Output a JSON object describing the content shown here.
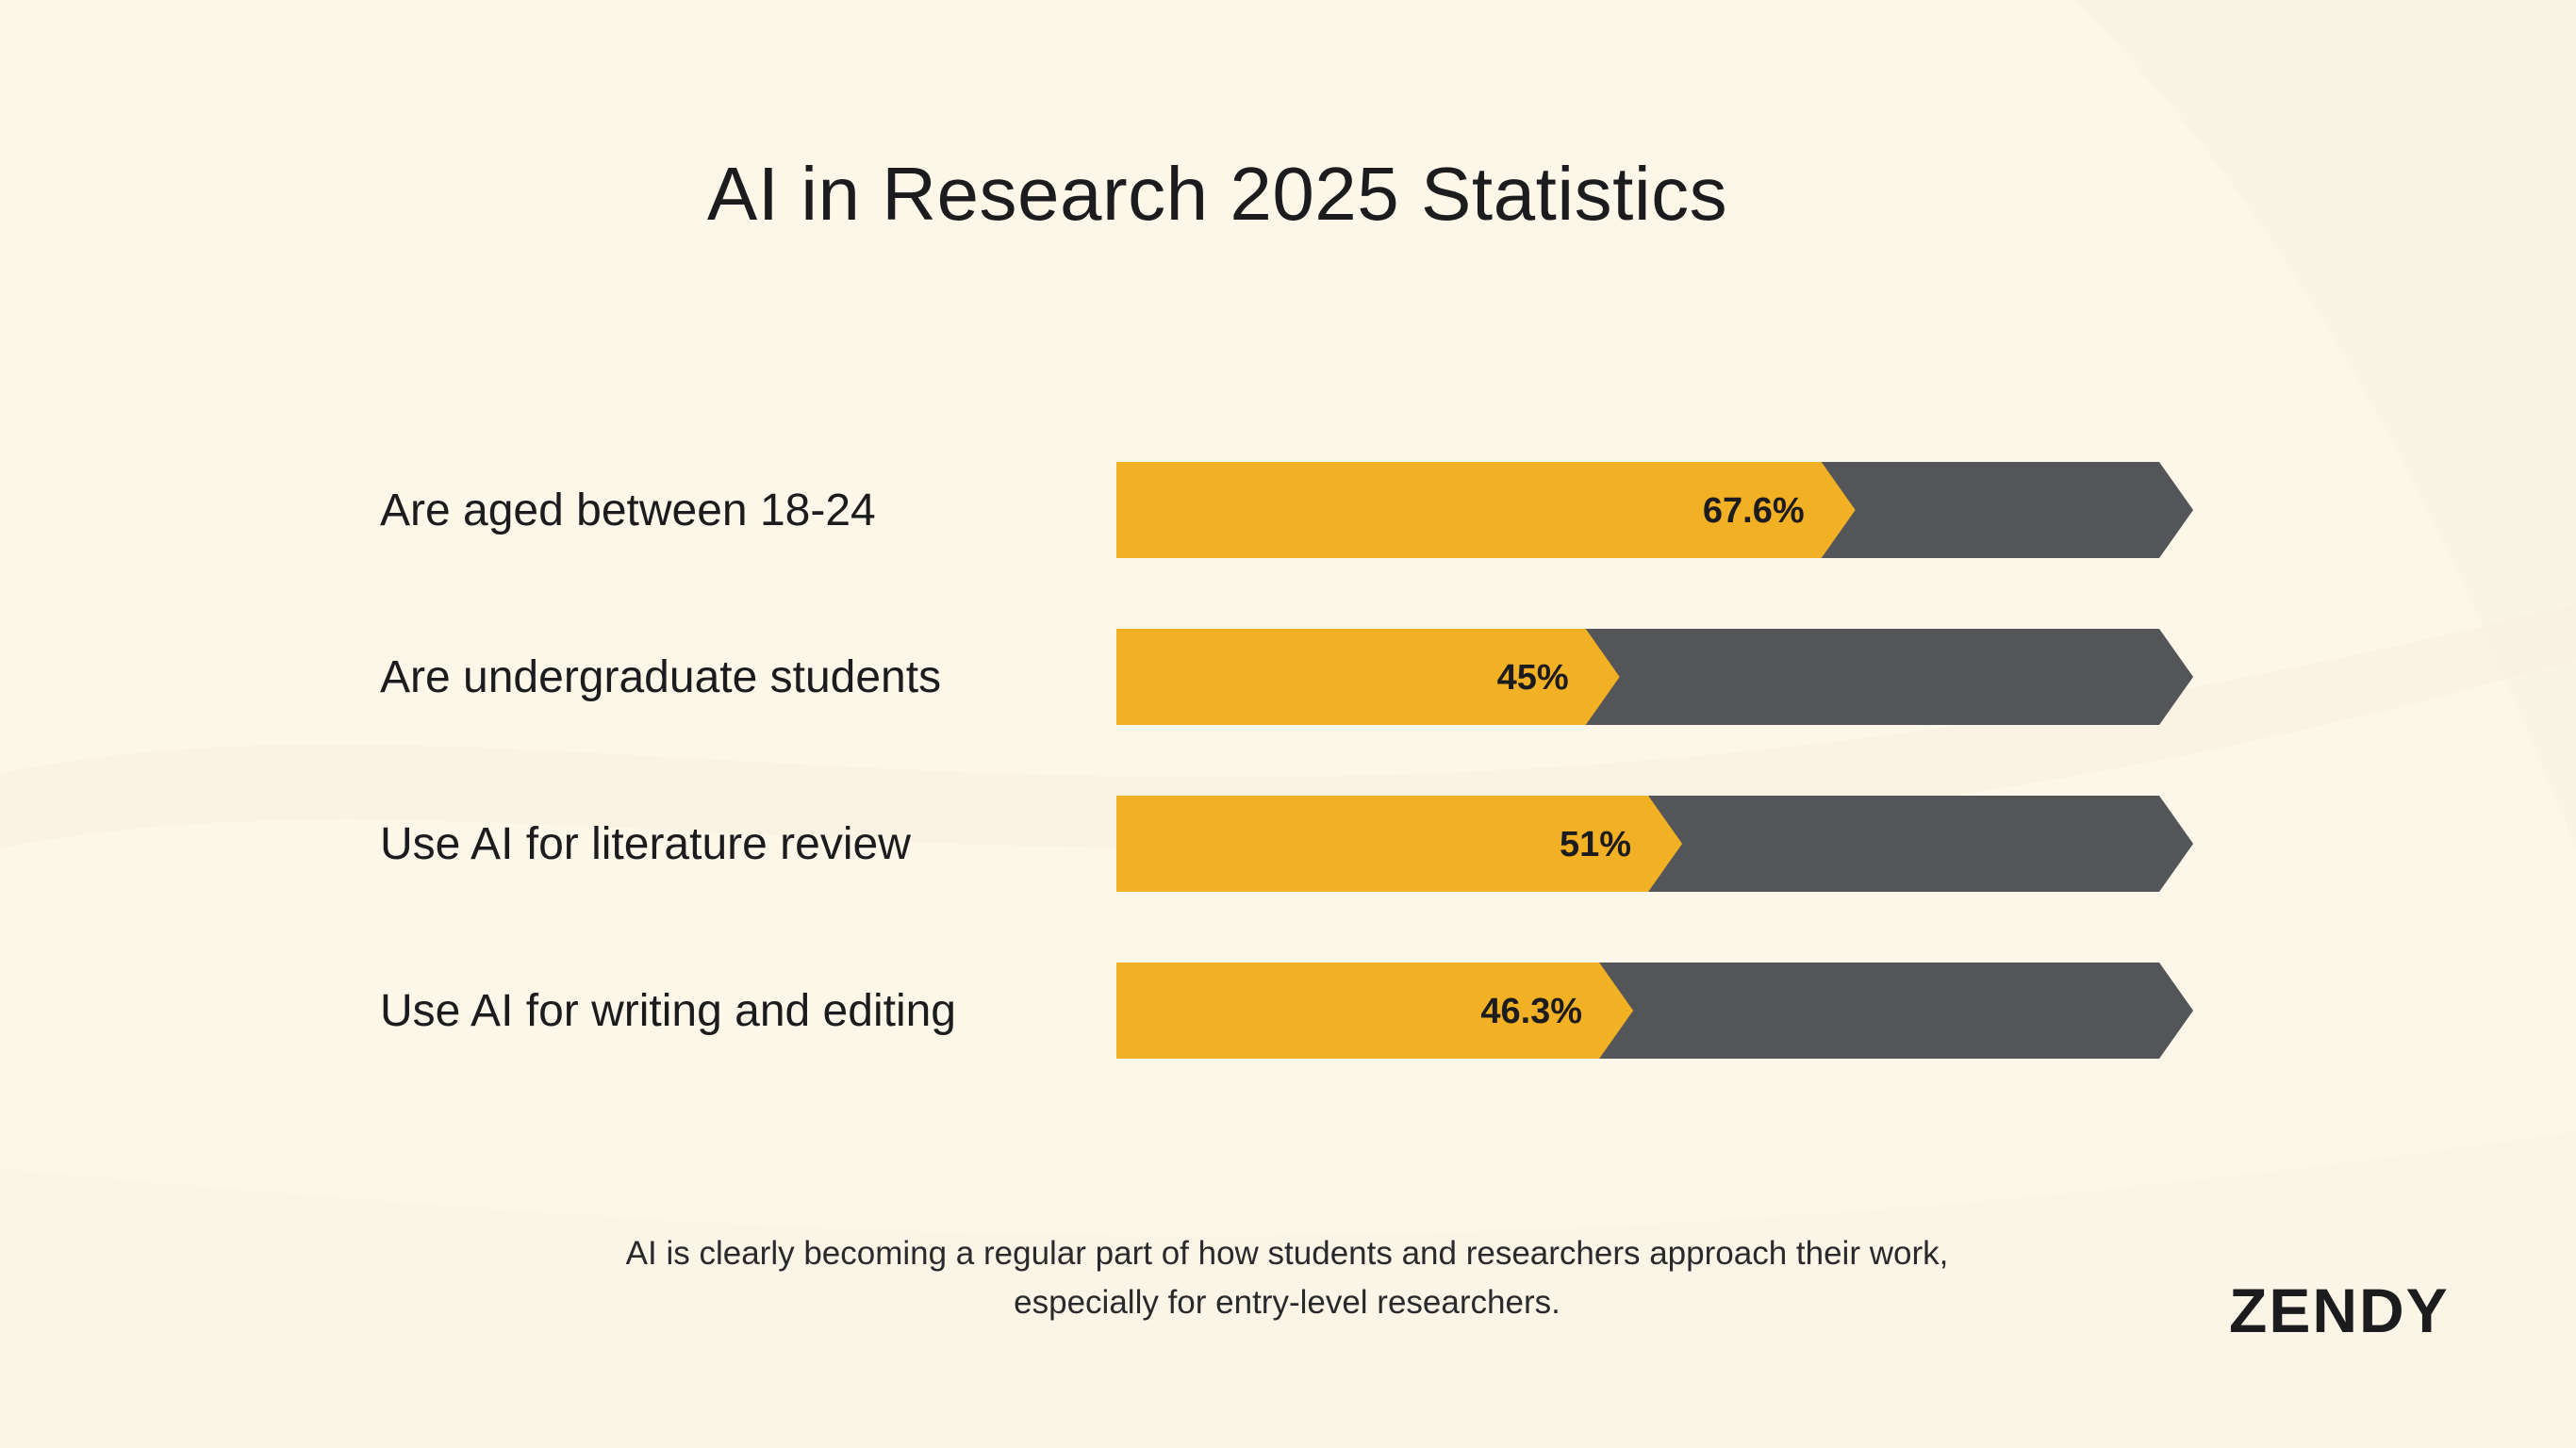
{
  "chart_data": {
    "type": "bar",
    "title": "AI in Research 2025 Statistics",
    "categories": [
      "Are aged between 18-24",
      "Are undergraduate students",
      "Use AI for literature review",
      "Use AI for writing and editing"
    ],
    "values": [
      67.6,
      45,
      51,
      46.3
    ],
    "value_labels": [
      "67.6%",
      "45%",
      "51%",
      "46.3%"
    ],
    "ylim": [
      0,
      100
    ],
    "orientation": "horizontal",
    "grid": false,
    "colors": {
      "value": "#f2b125",
      "remainder": "#545558"
    }
  },
  "footnote": "AI is clearly becoming a regular part of how students and researchers approach their work, especially for entry-level researchers.",
  "brand": "ZENDY"
}
